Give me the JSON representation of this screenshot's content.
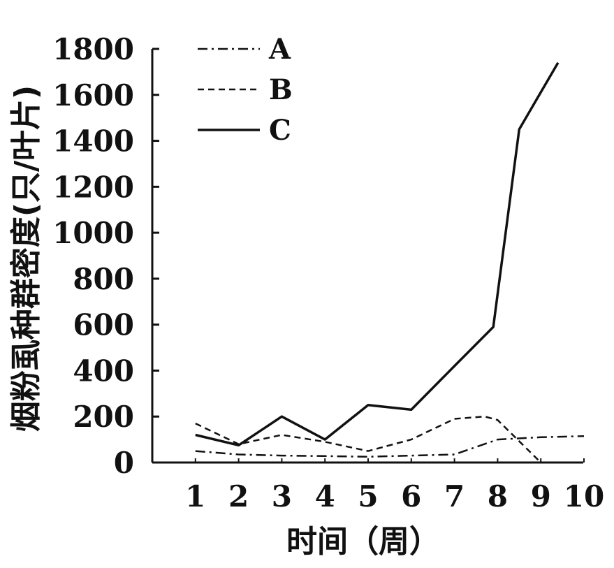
{
  "chart_data": {
    "type": "line",
    "title": "",
    "xlabel": "时间（周）",
    "ylabel": "烟粉虱种群密度(只/叶片)",
    "xlim": [
      0,
      10
    ],
    "ylim": [
      0,
      1800
    ],
    "x_ticks": [
      "1",
      "2",
      "3",
      "4",
      "5",
      "6",
      "7",
      "8",
      "9",
      "10"
    ],
    "y_ticks": [
      "0",
      "200",
      "400",
      "600",
      "800",
      "1000",
      "1200",
      "1400",
      "1600",
      "1800"
    ],
    "grid": false,
    "legend_position": "top-left",
    "series": [
      {
        "name": "A",
        "style": "dash-dot",
        "points": [
          [
            1,
            50
          ],
          [
            2,
            35
          ],
          [
            3,
            30
          ],
          [
            4,
            28
          ],
          [
            5,
            25
          ],
          [
            6,
            30
          ],
          [
            7,
            35
          ],
          [
            8,
            100
          ],
          [
            9,
            110
          ],
          [
            10,
            115
          ]
        ]
      },
      {
        "name": "B",
        "style": "dashed",
        "points": [
          [
            1,
            170
          ],
          [
            2,
            80
          ],
          [
            3,
            120
          ],
          [
            4,
            90
          ],
          [
            5,
            50
          ],
          [
            6,
            100
          ],
          [
            7,
            190
          ],
          [
            7.7,
            200
          ],
          [
            8,
            185
          ],
          [
            9,
            0
          ]
        ]
      },
      {
        "name": "C",
        "style": "solid",
        "points": [
          [
            1,
            120
          ],
          [
            2,
            75
          ],
          [
            3,
            200
          ],
          [
            4,
            100
          ],
          [
            5,
            250
          ],
          [
            6,
            230
          ],
          [
            7,
            420
          ],
          [
            7.9,
            590
          ],
          [
            8.5,
            1450
          ],
          [
            9.4,
            1740
          ]
        ]
      }
    ]
  }
}
